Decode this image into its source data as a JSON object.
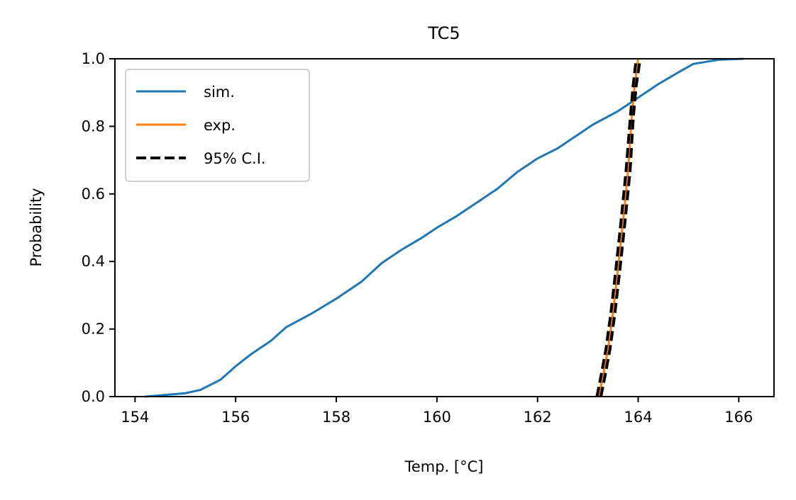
{
  "chart_data": {
    "type": "line",
    "title": "TC5",
    "xlabel": "Temp. [°C]",
    "ylabel": "Probability",
    "xlim": [
      153.6,
      166.7
    ],
    "ylim": [
      0.0,
      1.0
    ],
    "xticks": [
      154,
      156,
      158,
      160,
      162,
      164,
      166
    ],
    "yticks": [
      0.0,
      0.2,
      0.4,
      0.6,
      0.8,
      1.0
    ],
    "grid": false,
    "legend_position": "top-left",
    "series": [
      {
        "name": "sim.",
        "color": "#1f77b4",
        "style": "solid",
        "points": [
          [
            154.2,
            0.0
          ],
          [
            154.6,
            0.005
          ],
          [
            155.0,
            0.01
          ],
          [
            155.3,
            0.02
          ],
          [
            155.7,
            0.05
          ],
          [
            156.0,
            0.09
          ],
          [
            156.3,
            0.125
          ],
          [
            156.7,
            0.165
          ],
          [
            157.0,
            0.205
          ],
          [
            157.5,
            0.245
          ],
          [
            158.0,
            0.29
          ],
          [
            158.5,
            0.34
          ],
          [
            158.9,
            0.395
          ],
          [
            159.3,
            0.435
          ],
          [
            159.7,
            0.47
          ],
          [
            160.0,
            0.5
          ],
          [
            160.4,
            0.535
          ],
          [
            160.8,
            0.575
          ],
          [
            161.2,
            0.615
          ],
          [
            161.6,
            0.665
          ],
          [
            162.0,
            0.705
          ],
          [
            162.4,
            0.735
          ],
          [
            162.7,
            0.765
          ],
          [
            163.1,
            0.805
          ],
          [
            163.6,
            0.845
          ],
          [
            164.0,
            0.885
          ],
          [
            164.4,
            0.925
          ],
          [
            164.8,
            0.96
          ],
          [
            165.1,
            0.985
          ],
          [
            165.6,
            0.997
          ],
          [
            166.1,
            1.0
          ]
        ]
      },
      {
        "name": "exp.",
        "color": "#ff7f0e",
        "style": "solid",
        "points": [
          [
            163.22,
            0.0
          ],
          [
            163.3,
            0.06
          ],
          [
            163.4,
            0.14
          ],
          [
            163.5,
            0.25
          ],
          [
            163.6,
            0.38
          ],
          [
            163.7,
            0.52
          ],
          [
            163.8,
            0.67
          ],
          [
            163.87,
            0.82
          ],
          [
            163.93,
            0.92
          ],
          [
            164.0,
            1.0
          ]
        ]
      },
      {
        "name": "95% C.I.",
        "color": "#000000",
        "style": "dashed",
        "points": [
          [
            163.18,
            0.0
          ],
          [
            163.26,
            0.06
          ],
          [
            163.36,
            0.14
          ],
          [
            163.46,
            0.25
          ],
          [
            163.56,
            0.38
          ],
          [
            163.66,
            0.52
          ],
          [
            163.76,
            0.67
          ],
          [
            163.84,
            0.82
          ],
          [
            163.9,
            0.92
          ],
          [
            163.96,
            1.0
          ]
        ]
      },
      {
        "name": "",
        "color": "#000000",
        "style": "dashed",
        "points": [
          [
            163.26,
            0.0
          ],
          [
            163.34,
            0.06
          ],
          [
            163.44,
            0.14
          ],
          [
            163.54,
            0.25
          ],
          [
            163.64,
            0.38
          ],
          [
            163.74,
            0.52
          ],
          [
            163.84,
            0.67
          ],
          [
            163.9,
            0.82
          ],
          [
            163.96,
            0.92
          ],
          [
            164.04,
            1.0
          ]
        ]
      }
    ]
  }
}
